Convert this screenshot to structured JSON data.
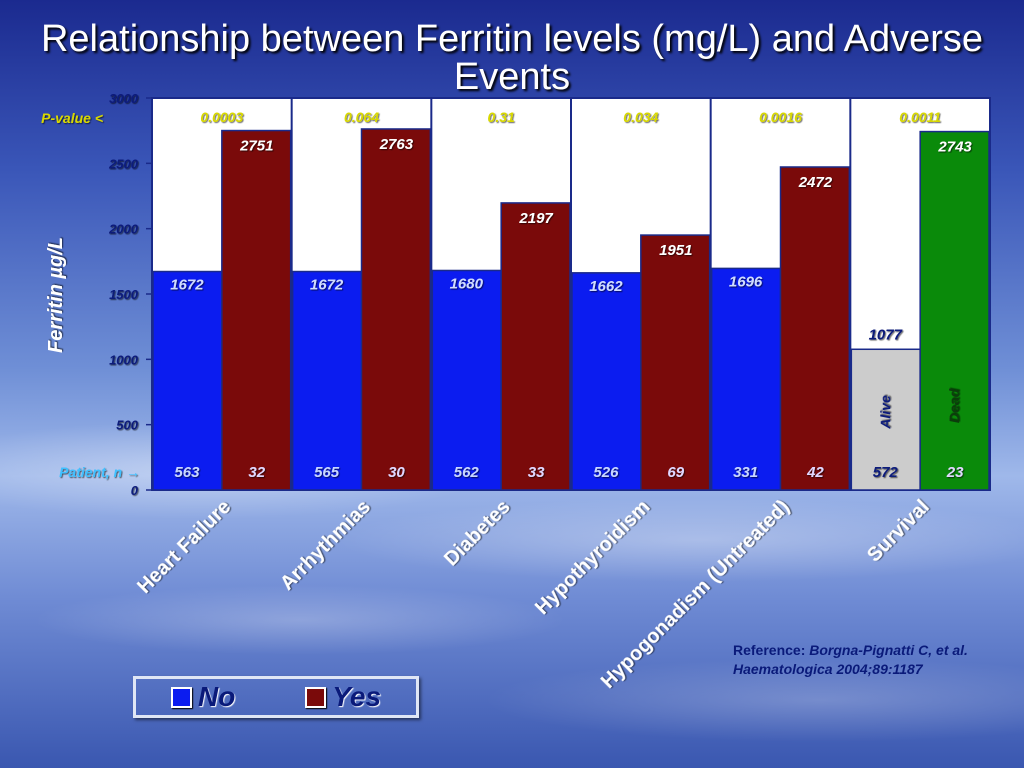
{
  "title": "Relationship between Ferritin levels (mg/L) and Adverse Events",
  "reference": {
    "prefix": "Reference: ",
    "text": "Borgna-Pignatti C, et al. Haematologica 2004;89:1187"
  },
  "legend": [
    {
      "label": "No",
      "color": "#0b1cf0"
    },
    {
      "label": "Yes",
      "color": "#7a0a0a"
    }
  ],
  "colors": {
    "no": "#0b1cf0",
    "yes": "#7a0a0a",
    "alive": "#cccccc",
    "dead": "#0a8a0a",
    "label": "#0a1a7a",
    "pvalue": "#d8d800",
    "patient": "#40c0ff"
  },
  "chart_data": {
    "type": "bar",
    "ylabel": "Ferritin µg/L",
    "ylim": [
      0,
      3000
    ],
    "yticks": [
      0,
      500,
      1000,
      1500,
      2000,
      2500,
      3000
    ],
    "pvalue_label": "P-value <",
    "patient_label": "Patient, n →",
    "categories": [
      "Heart Failure",
      "Arrhythmias",
      "Diabetes",
      "Hypothyroidism",
      "Hypogonadism (Untreated)",
      "Survival"
    ],
    "p_values": [
      "0.0003",
      "0.064",
      "0.31",
      "0.034",
      "0.0016",
      "0.0011"
    ],
    "series": [
      {
        "name": "No",
        "values": [
          1672,
          1672,
          1680,
          1662,
          1696,
          1077
        ],
        "n": [
          563,
          565,
          562,
          526,
          331,
          572
        ]
      },
      {
        "name": "Yes",
        "values": [
          2751,
          2763,
          2197,
          1951,
          2472,
          2743
        ],
        "n": [
          32,
          30,
          33,
          69,
          42,
          23
        ]
      }
    ],
    "survival_labels": {
      "no": "Alive",
      "yes": "Dead"
    }
  }
}
